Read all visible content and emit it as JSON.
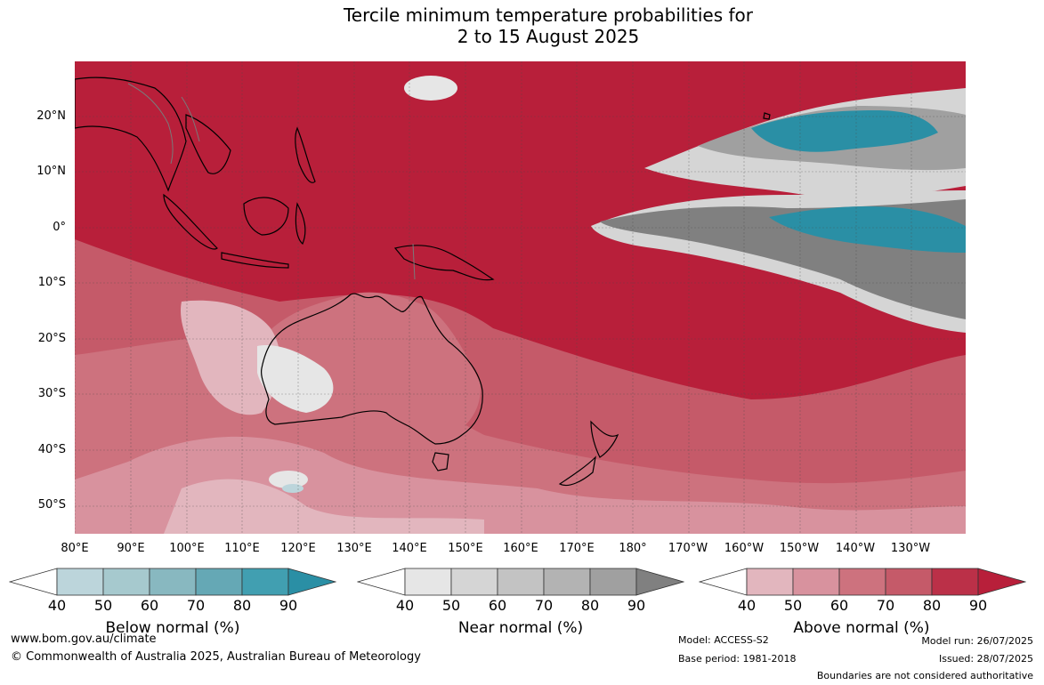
{
  "title_line1": "Tercile minimum temperature probabilities for",
  "title_line2": "2 to 15 August 2025",
  "lat_labels": [
    "20°N",
    "10°N",
    "0°",
    "10°S",
    "20°S",
    "30°S",
    "40°S",
    "50°S"
  ],
  "lon_labels": [
    "80°E",
    "90°E",
    "100°E",
    "110°E",
    "120°E",
    "130°E",
    "140°E",
    "150°E",
    "160°E",
    "170°E",
    "180°",
    "170°W",
    "160°W",
    "150°W",
    "140°W",
    "130°W"
  ],
  "colorbars": [
    {
      "title": "Below normal (%)",
      "ticks": [
        "40",
        "50",
        "60",
        "70",
        "80",
        "90"
      ],
      "colors": [
        "#ffffff",
        "#bcd5db",
        "#a6c9ce",
        "#88b8c0",
        "#65a8b5",
        "#419fb1",
        "#2a8fa5"
      ]
    },
    {
      "title": "Near normal (%)",
      "ticks": [
        "40",
        "50",
        "60",
        "70",
        "80",
        "90"
      ],
      "colors": [
        "#ffffff",
        "#e6e6e6",
        "#d5d5d5",
        "#c3c3c3",
        "#b3b3b3",
        "#a0a0a0",
        "#808080"
      ]
    },
    {
      "title": "Above normal (%)",
      "ticks": [
        "40",
        "50",
        "60",
        "70",
        "80",
        "90"
      ],
      "colors": [
        "#ffffff",
        "#e2b6be",
        "#d8929e",
        "#cd727e",
        "#c55a69",
        "#bb3048",
        "#b81f3a"
      ]
    }
  ],
  "footer": {
    "website": "www.bom.gov.au/climate",
    "copyright": "© Commonwealth of Australia 2025, Australian Bureau of Meteorology",
    "model": "Model: ACCESS-S2",
    "base_period": "Base period: 1981-2018",
    "model_run": "Model run: 26/07/2025",
    "issued": "Issued: 28/07/2025",
    "disclaimer": "Boundaries are not considered authoritative"
  }
}
